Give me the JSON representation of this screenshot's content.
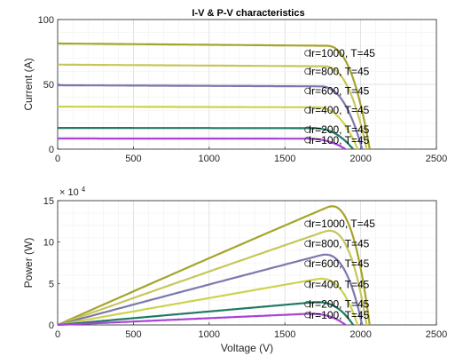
{
  "chart_data": [
    {
      "type": "line",
      "title": "I-V & P-V characteristics",
      "xlabel": "",
      "ylabel": "Current (A)",
      "xlim": [
        0,
        2500
      ],
      "ylim": [
        0,
        100
      ],
      "xticks": [
        "0",
        "500",
        "1000",
        "1500",
        "2000",
        "2500"
      ],
      "yticks": [
        "0",
        "50",
        "100"
      ],
      "grid": true,
      "series": [
        {
          "name": "Ir=1000, T=45",
          "color": "#A5A42B",
          "isc": 81.5,
          "ivSlope": 0.0012,
          "voc": 2060,
          "knee": 0.86,
          "mpp": {
            "v": 1650,
            "y": 74
          }
        },
        {
          "name": "Ir=800, T=45",
          "color": "#C7C65A",
          "isc": 65.2,
          "ivSlope": 0.0011,
          "voc": 2040,
          "knee": 0.86,
          "mpp": {
            "v": 1650,
            "y": 60
          }
        },
        {
          "name": "Ir=600, T=45",
          "color": "#7B78AE",
          "isc": 49.3,
          "ivSlope": 0.001,
          "voc": 2010,
          "knee": 0.86,
          "mpp": {
            "v": 1650,
            "y": 45
          }
        },
        {
          "name": "Ir=400, T=45",
          "color": "#CCD34A",
          "isc": 32.8,
          "ivSlope": 0.0009,
          "voc": 1980,
          "knee": 0.86,
          "mpp": {
            "v": 1650,
            "y": 30
          }
        },
        {
          "name": "Ir=200, T=45",
          "color": "#1E7A63",
          "isc": 16.4,
          "ivSlope": 0.0008,
          "voc": 1950,
          "knee": 0.86,
          "mpp": {
            "v": 1650,
            "y": 15
          }
        },
        {
          "name": "Ir=100, T=45",
          "color": "#A843D6",
          "isc": 8.2,
          "ivSlope": 0.0007,
          "voc": 1900,
          "knee": 0.86,
          "mpp": {
            "v": 1650,
            "y": 7
          }
        }
      ]
    },
    {
      "type": "line",
      "title": "",
      "xlabel": "Voltage (V)",
      "ylabel": "Power (W)",
      "exponent_label": "× 10",
      "exponent_power": "4",
      "xlim": [
        0,
        2500
      ],
      "ylim": [
        0,
        15
      ],
      "xticks": [
        "0",
        "500",
        "1000",
        "1500",
        "2000",
        "2500"
      ],
      "yticks": [
        "0",
        "5",
        "10",
        "15"
      ],
      "grid": true,
      "series_ref": "same as I-V chart (P = V × I, in units of 10^4 W)",
      "mpp_power": [
        {
          "name": "Ir=1000, T=45",
          "v": 1650,
          "p": 12.2
        },
        {
          "name": "Ir=800, T=45",
          "v": 1650,
          "p": 9.8
        },
        {
          "name": "Ir=600, T=45",
          "v": 1650,
          "p": 7.4
        },
        {
          "name": "Ir=400, T=45",
          "v": 1650,
          "p": 4.9
        },
        {
          "name": "Ir=200, T=45",
          "v": 1650,
          "p": 2.5
        },
        {
          "name": "Ir=100, T=45",
          "v": 1650,
          "p": 1.2
        }
      ]
    }
  ]
}
